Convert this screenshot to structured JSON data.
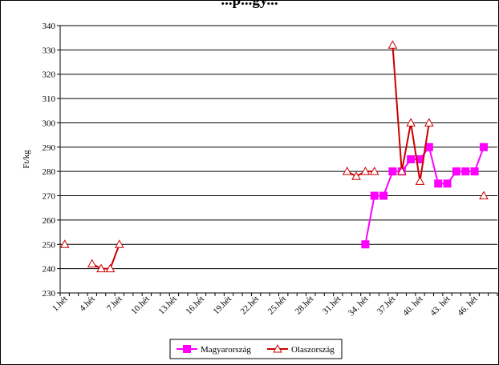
{
  "chart_data": {
    "type": "line",
    "title": "...p...gy...",
    "ylabel": "Ft/kg",
    "xlabel": "",
    "ylim": [
      230,
      340
    ],
    "yticks": [
      230,
      240,
      250,
      260,
      270,
      280,
      290,
      300,
      310,
      320,
      330,
      340
    ],
    "grid": true,
    "legend_position": "bottom-center",
    "x_count": 48,
    "x_tick_labels": [
      {
        "index": 0,
        "label": "1.hét"
      },
      {
        "index": 3,
        "label": "4.hét"
      },
      {
        "index": 6,
        "label": "7.hét"
      },
      {
        "index": 9,
        "label": "10.hét"
      },
      {
        "index": 12,
        "label": "13.hét"
      },
      {
        "index": 15,
        "label": "16.hét"
      },
      {
        "index": 18,
        "label": "19.hét"
      },
      {
        "index": 21,
        "label": "22.hét"
      },
      {
        "index": 24,
        "label": "25.hét"
      },
      {
        "index": 27,
        "label": "28.hét"
      },
      {
        "index": 30,
        "label": "31.hét"
      },
      {
        "index": 33,
        "label": "34. hét"
      },
      {
        "index": 36,
        "label": "37.hét"
      },
      {
        "index": 39,
        "label": "40. hét"
      },
      {
        "index": 42,
        "label": "43. hét"
      },
      {
        "index": 45,
        "label": "46. hét"
      }
    ],
    "series": [
      {
        "name": "Magyarország",
        "color": "#ff00ff",
        "marker": "square",
        "points": [
          {
            "week": 34,
            "value": 250
          },
          {
            "week": 35,
            "value": 270
          },
          {
            "week": 36,
            "value": 270
          },
          {
            "week": 37,
            "value": 280
          },
          {
            "week": 38,
            "value": 280
          },
          {
            "week": 39,
            "value": 285
          },
          {
            "week": 40,
            "value": 285
          },
          {
            "week": 41,
            "value": 290
          },
          {
            "week": 42,
            "value": 275
          },
          {
            "week": 43,
            "value": 275
          },
          {
            "week": 44,
            "value": 280
          },
          {
            "week": 45,
            "value": 280
          },
          {
            "week": 46,
            "value": 280
          },
          {
            "week": 47,
            "value": 290
          }
        ]
      },
      {
        "name": "Olaszország",
        "color": "#cc0000",
        "marker": "triangle",
        "points": [
          {
            "week": 1,
            "value": 250
          },
          {
            "week": 4,
            "value": 242
          },
          {
            "week": 5,
            "value": 240
          },
          {
            "week": 6,
            "value": 240
          },
          {
            "week": 7,
            "value": 250
          },
          {
            "week": 32,
            "value": 280
          },
          {
            "week": 33,
            "value": 278
          },
          {
            "week": 34,
            "value": 280
          },
          {
            "week": 35,
            "value": 280
          },
          {
            "week": 37,
            "value": 332
          },
          {
            "week": 38,
            "value": 280
          },
          {
            "week": 39,
            "value": 300
          },
          {
            "week": 40,
            "value": 276
          },
          {
            "week": 41,
            "value": 300
          },
          {
            "week": 47,
            "value": 270
          }
        ]
      }
    ]
  }
}
